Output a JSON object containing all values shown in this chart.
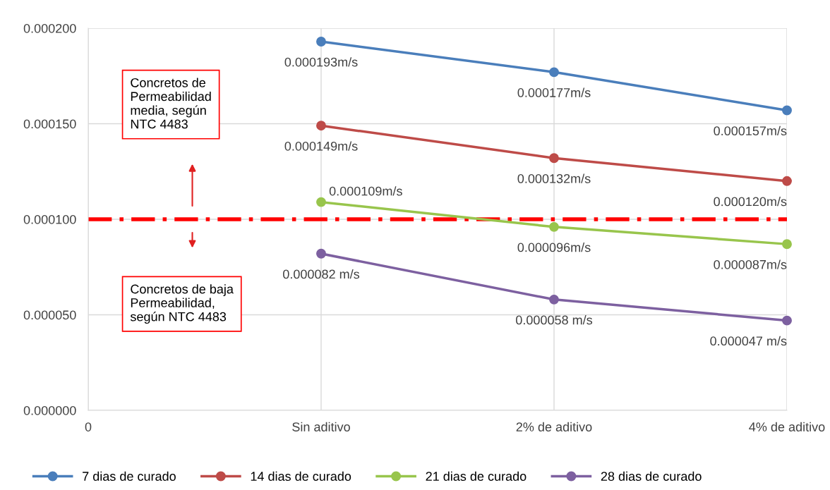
{
  "chart_data": {
    "type": "line",
    "categories": [
      "0",
      "Sin aditivo",
      "2% de aditivo",
      "4% de aditivo"
    ],
    "series": [
      {
        "name": "7 dias de curado",
        "color": "#4a7ebb",
        "values": [
          null,
          0.000193,
          0.000177,
          0.000157
        ],
        "value_labels": [
          null,
          "0.000193m/s",
          "0.000177m/s",
          "0.000157m/s"
        ]
      },
      {
        "name": "14 dias de curado",
        "color": "#be4b48",
        "values": [
          null,
          0.000149,
          0.000132,
          0.00012
        ],
        "value_labels": [
          null,
          "0.000149m/s",
          "0.000132m/s",
          "0.000120m/s"
        ]
      },
      {
        "name": "21 dias de curado",
        "color": "#98c54c",
        "values": [
          null,
          0.000109,
          9.6e-05,
          8.7e-05
        ],
        "value_labels": [
          null,
          "0.000109m/s",
          "0.000096m/s",
          "0.000087m/s"
        ]
      },
      {
        "name": "28 dias de curado",
        "color": "#7d60a0",
        "values": [
          null,
          8.2e-05,
          5.8e-05,
          4.7e-05
        ],
        "value_labels": [
          null,
          "0.000082 m/s",
          "0.000058 m/s",
          "0.000047 m/s"
        ]
      }
    ],
    "ylim": [
      0,
      0.0002
    ],
    "yticks": [
      {
        "value": 0,
        "label": "0.000000"
      },
      {
        "value": 5e-05,
        "label": "0.000050"
      },
      {
        "value": 0.0001,
        "label": "0.000100"
      },
      {
        "value": 0.00015,
        "label": "0.000150"
      },
      {
        "value": 0.0002,
        "label": "0.000200"
      }
    ],
    "ref_lines": [
      {
        "axis": "y",
        "value": 0.0001,
        "color": "#ff0000",
        "line_style": "dashdot"
      }
    ],
    "annotations": [
      "Concretos de\nPermeabilidad\nmedia, según\nNTC 4483",
      "Concretos de baja\nPermeabilidad,\nsegún NTC 4483"
    ],
    "grid": true,
    "legend": "bottom",
    "marker": "circle",
    "line_style": "solid"
  }
}
